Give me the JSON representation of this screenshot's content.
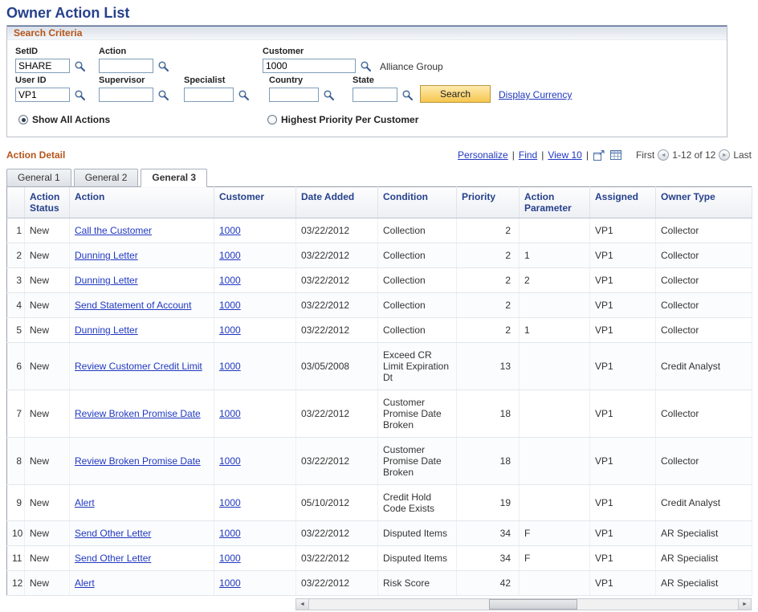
{
  "page": {
    "title": "Owner Action List"
  },
  "colors": {
    "title_blue": "#26418c",
    "section_orange": "#b5541a",
    "link_blue": "#2038c0",
    "button_yellow": "#f6c64e"
  },
  "icons": {
    "prev": "◄",
    "next": "►",
    "scroll_left": "◄",
    "scroll_right": "►"
  },
  "search": {
    "title": "Search Criteria",
    "setid_label": "SetID",
    "setid_value": "SHARE",
    "action_label": "Action",
    "action_value": "",
    "customer_label": "Customer",
    "customer_value": "1000",
    "customer_desc": "Alliance Group",
    "userid_label": "User ID",
    "userid_value": "VP1",
    "supervisor_label": "Supervisor",
    "supervisor_value": "",
    "specialist_label": "Specialist",
    "specialist_value": "",
    "country_label": "Country",
    "country_value": "",
    "state_label": "State",
    "state_value": "",
    "search_button": "Search",
    "display_currency": "Display Currency",
    "radio_show_all": "Show All Actions",
    "radio_highest_priority": "Highest Priority Per Customer"
  },
  "grid": {
    "title": "Action Detail",
    "toolbar": {
      "personalize": "Personalize",
      "find": "Find",
      "view": "View 10",
      "separator": "|",
      "first": "First",
      "range": "1-12 of 12",
      "last": "Last"
    },
    "tabs": [
      "General 1",
      "General 2",
      "General 3"
    ],
    "active_tab": 2,
    "columns": [
      "Action Status",
      "Action",
      "Customer",
      "Date Added",
      "Condition",
      "Priority",
      "Action Parameter",
      "Assigned",
      "Owner Type"
    ],
    "rows": [
      {
        "n": "1",
        "status": "New",
        "action": "Call the Customer",
        "customer": "1000",
        "date": "03/22/2012",
        "condition": "Collection",
        "priority": "2",
        "param": "",
        "assigned": "VP1",
        "owner": "Collector"
      },
      {
        "n": "2",
        "status": "New",
        "action": "Dunning Letter",
        "customer": "1000",
        "date": "03/22/2012",
        "condition": "Collection",
        "priority": "2",
        "param": "1",
        "assigned": "VP1",
        "owner": "Collector"
      },
      {
        "n": "3",
        "status": "New",
        "action": "Dunning Letter",
        "customer": "1000",
        "date": "03/22/2012",
        "condition": "Collection",
        "priority": "2",
        "param": "2",
        "assigned": "VP1",
        "owner": "Collector"
      },
      {
        "n": "4",
        "status": "New",
        "action": "Send Statement of Account",
        "customer": "1000",
        "date": "03/22/2012",
        "condition": "Collection",
        "priority": "2",
        "param": "",
        "assigned": "VP1",
        "owner": "Collector"
      },
      {
        "n": "5",
        "status": "New",
        "action": "Dunning Letter",
        "customer": "1000",
        "date": "03/22/2012",
        "condition": "Collection",
        "priority": "2",
        "param": "1",
        "assigned": "VP1",
        "owner": "Collector"
      },
      {
        "n": "6",
        "status": "New",
        "action": "Review Customer Credit Limit",
        "customer": "1000",
        "date": "03/05/2008",
        "condition": "Exceed CR Limit Expiration Dt",
        "priority": "13",
        "param": "",
        "assigned": "VP1",
        "owner": "Credit Analyst"
      },
      {
        "n": "7",
        "status": "New",
        "action": "Review Broken Promise Date",
        "customer": "1000",
        "date": "03/22/2012",
        "condition": "Customer Promise Date Broken",
        "priority": "18",
        "param": "",
        "assigned": "VP1",
        "owner": "Collector"
      },
      {
        "n": "8",
        "status": "New",
        "action": "Review Broken Promise Date",
        "customer": "1000",
        "date": "03/22/2012",
        "condition": "Customer Promise Date Broken",
        "priority": "18",
        "param": "",
        "assigned": "VP1",
        "owner": "Collector"
      },
      {
        "n": "9",
        "status": "New",
        "action": "Alert",
        "customer": "1000",
        "date": "05/10/2012",
        "condition": "Credit Hold Code Exists",
        "priority": "19",
        "param": "",
        "assigned": "VP1",
        "owner": "Credit Analyst"
      },
      {
        "n": "10",
        "status": "New",
        "action": "Send Other Letter",
        "customer": "1000",
        "date": "03/22/2012",
        "condition": "Disputed Items",
        "priority": "34",
        "param": "F",
        "assigned": "VP1",
        "owner": "AR Specialist"
      },
      {
        "n": "11",
        "status": "New",
        "action": "Send Other Letter",
        "customer": "1000",
        "date": "03/22/2012",
        "condition": "Disputed Items",
        "priority": "34",
        "param": "F",
        "assigned": "VP1",
        "owner": "AR Specialist"
      },
      {
        "n": "12",
        "status": "New",
        "action": "Alert",
        "customer": "1000",
        "date": "03/22/2012",
        "condition": "Risk Score",
        "priority": "42",
        "param": "",
        "assigned": "VP1",
        "owner": "AR Specialist"
      }
    ]
  }
}
